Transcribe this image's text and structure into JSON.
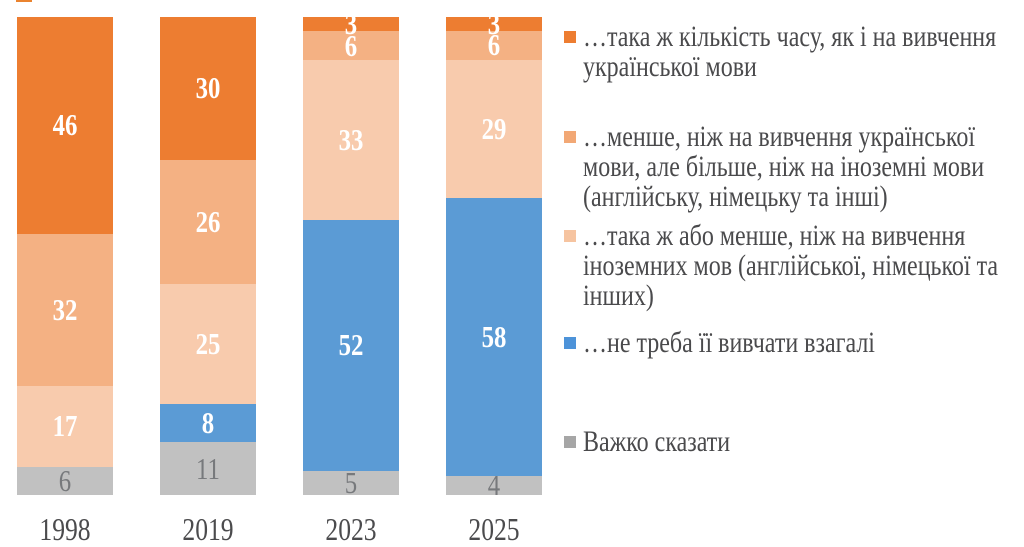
{
  "chart_data": {
    "type": "bar",
    "variant": "stacked-100",
    "title": "",
    "xlabel": "",
    "ylabel": "",
    "grid": false,
    "legend_position": "right",
    "categories": [
      "1998",
      "2019",
      "2023",
      "2025"
    ],
    "series": [
      {
        "name": "…така ж кількість часу, як і на вивчення української мови",
        "color": "#ED7D31",
        "legend_color": "#ED7D31",
        "values": [
          46,
          30,
          3,
          3
        ],
        "label_color": "#FFFFFF",
        "label_weight": "bold",
        "legend_lines": [
          "…така ж кількість часу, як і на вивчення",
          "української мови"
        ]
      },
      {
        "name": "…менше, ніж на вивчення української мови, але більше, ніж на іноземні мови (англійську, німецьку та інші)",
        "color": "#F4B183",
        "legend_color": "#F2A875",
        "values": [
          32,
          26,
          6,
          6
        ],
        "label_color": "#FFFFFF",
        "label_weight": "bold",
        "legend_lines": [
          "…менше, ніж на вивчення української",
          "мови, але більше, ніж на іноземні мови",
          "(англійську, німецьку та інші)"
        ]
      },
      {
        "name": "…така ж або менше, ніж на вивчення іноземних мов (англійської, німецької та інших)",
        "color": "#F8CBAD",
        "legend_color": "#F6C4A0",
        "values": [
          17,
          25,
          33,
          29
        ],
        "label_color": "#FFFFFF",
        "label_weight": "bold",
        "legend_lines": [
          "…така ж або менше, ніж на вивчення",
          "іноземних мов (англійської, німецької та",
          "інших)"
        ]
      },
      {
        "name": "…не треба її вивчати взагалі",
        "color": "#5B9BD5",
        "legend_color": "#4D93D9",
        "values": [
          null,
          8,
          52,
          58
        ],
        "label_color": "#FFFFFF",
        "label_weight": "bold",
        "legend_lines": [
          "…не треба її вивчати взагалі"
        ]
      },
      {
        "name": "Важко сказати",
        "color": "#C1C1C1",
        "legend_color": "#A6A6A6",
        "values": [
          6,
          11,
          5,
          4
        ],
        "label_color": "#77797c",
        "label_weight": "normal",
        "legend_lines": [
          "Важко сказати"
        ]
      }
    ]
  }
}
